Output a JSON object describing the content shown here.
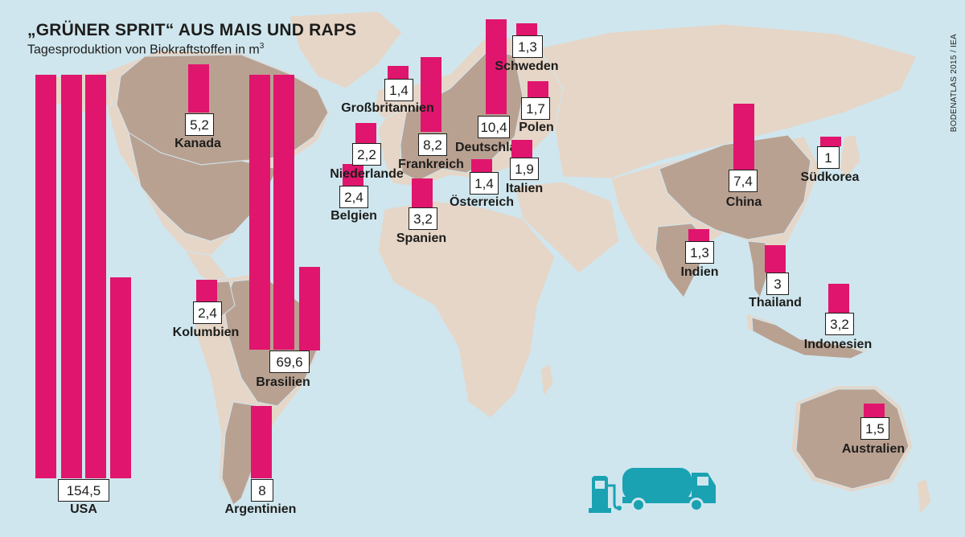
{
  "title": "„GRÜNER SPRIT“ AUS MAIS UND RAPS",
  "subtitle": "Tagesproduktion von Biokraftstoffen in m",
  "subtitle_sup": "3",
  "source": "BODENATLAS 2015 / IEA",
  "colors": {
    "water": "#cfe6ee",
    "land": "#e6d6c8",
    "land_highlight": "#b9a192",
    "bar": "#e0156e",
    "truck": "#1aa2b2"
  },
  "icons": [
    "fuel-pump-icon",
    "tanker-truck-icon"
  ],
  "chart_data": {
    "type": "bar",
    "unit": "m3",
    "countries": [
      {
        "name": "USA",
        "value": 154.5,
        "label": "154,5"
      },
      {
        "name": "Brasilien",
        "value": 69.6,
        "label": "69,6"
      },
      {
        "name": "Deutschland",
        "value": 10.4,
        "label": "10,4"
      },
      {
        "name": "Frankreich",
        "value": 8.2,
        "label": "8,2"
      },
      {
        "name": "Argentinien",
        "value": 8,
        "label": "8"
      },
      {
        "name": "China",
        "value": 7.4,
        "label": "7,4"
      },
      {
        "name": "Kanada",
        "value": 5.2,
        "label": "5,2"
      },
      {
        "name": "Spanien",
        "value": 3.2,
        "label": "3,2"
      },
      {
        "name": "Indonesien",
        "value": 3.2,
        "label": "3,2"
      },
      {
        "name": "Thailand",
        "value": 3,
        "label": "3"
      },
      {
        "name": "Kolumbien",
        "value": 2.4,
        "label": "2,4"
      },
      {
        "name": "Belgien",
        "value": 2.4,
        "label": "2,4"
      },
      {
        "name": "Niederlande",
        "value": 2.2,
        "label": "2,2"
      },
      {
        "name": "Italien",
        "value": 1.9,
        "label": "1,9"
      },
      {
        "name": "Polen",
        "value": 1.7,
        "label": "1,7"
      },
      {
        "name": "Australien",
        "value": 1.5,
        "label": "1,5"
      },
      {
        "name": "Großbritannien",
        "value": 1.4,
        "label": "1,4"
      },
      {
        "name": "Österreich",
        "value": 1.4,
        "label": "1,4"
      },
      {
        "name": "Schweden",
        "value": 1.3,
        "label": "1,3"
      },
      {
        "name": "Indien",
        "value": 1.3,
        "label": "1,3"
      },
      {
        "name": "Südkorea",
        "value": 1,
        "label": "1"
      }
    ]
  }
}
